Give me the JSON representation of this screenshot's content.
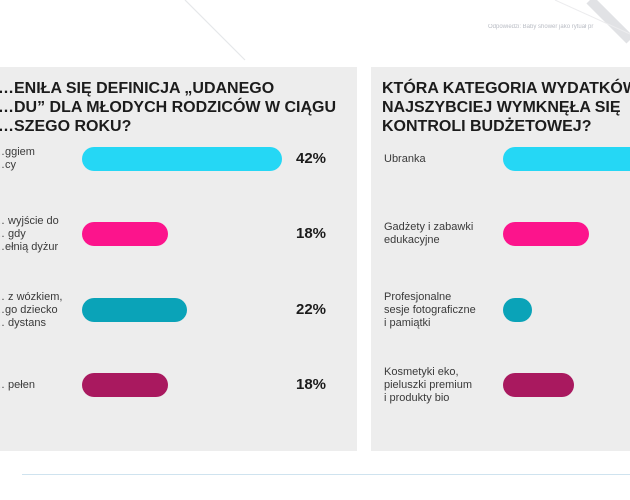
{
  "source_note": "Odpowiedzi: Baby shower jako rytuał pr",
  "colors": {
    "cyan": "#25d7f5",
    "pink": "#fc148c",
    "teal": "#0aa3b8",
    "plum": "#a9195f"
  },
  "chart_data": [
    {
      "type": "bar",
      "title": "…ENIŁA SIĘ DEFINICJA „UDANEGO\n…DU” DLA MŁODYCH RODZICÓW W CIĄGU\n…SZEGO ROKU?",
      "categories": [
        "…ggiem\n…cy",
        "… wyjście do\n… gdy\n…ełnią dyżur",
        "… z wózkiem,\n…go dziecko\n… dystans",
        "… pełen"
      ],
      "values": [
        42,
        18,
        22,
        18
      ],
      "value_labels": [
        "42%",
        "18%",
        "22%",
        "18%"
      ],
      "bar_colors": [
        "#25d7f5",
        "#fc148c",
        "#0aa3b8",
        "#a9195f"
      ],
      "xlim": [
        0,
        42
      ],
      "orientation": "horizontal"
    },
    {
      "type": "bar",
      "title": "KTÓRA KATEGORIA WYDATKÓW\nNAJSZYBCIEJ WYMKNĘŁA SIĘ\nKONTROLI BUDŻETOWEJ?",
      "categories": [
        "Ubranka",
        "Gadżety i zabawki\nedukacyjne",
        "Profesjonalne\nsesje fotograficzne\ni pamiątki",
        "Kosmetyki eko,\npieluszki premium\ni produkty bio"
      ],
      "values": [
        42,
        18,
        6,
        15
      ],
      "bar_colors": [
        "#25d7f5",
        "#fc148c",
        "#0aa3b8",
        "#a9195f"
      ],
      "xlim": [
        0,
        42
      ],
      "orientation": "horizontal"
    }
  ]
}
